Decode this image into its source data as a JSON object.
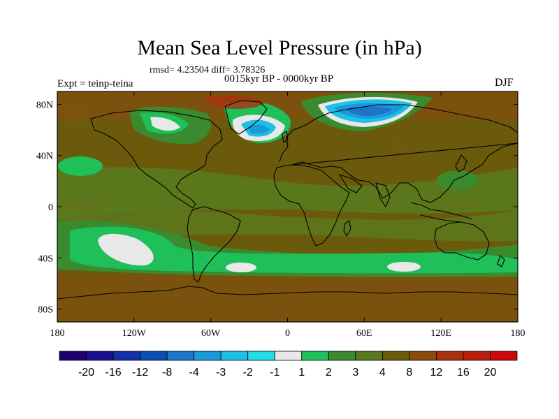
{
  "chart_data": {
    "type": "heatmap",
    "title": "Mean Sea Level Pressure (in hPa)",
    "stats_text": "rmsd= 4.23504 diff= 3.78326",
    "period": "0015kyr BP - 0000kyr BP",
    "experiment": "Expt = teinp-teina",
    "season": "DJF",
    "x_ticks": [
      "180",
      "120W",
      "60W",
      "0",
      "60E",
      "120E",
      "180"
    ],
    "y_ticks": [
      "80N",
      "40N",
      "0",
      "40S",
      "80S"
    ],
    "x_range": [
      -180,
      180
    ],
    "y_range": [
      -90,
      90
    ],
    "colorbar": {
      "labels": [
        "-20",
        "-16",
        "-12",
        "-8",
        "-4",
        "-3",
        "-2",
        "-1",
        "1",
        "2",
        "3",
        "4",
        "8",
        "12",
        "16",
        "20"
      ],
      "colors": [
        "#20006e",
        "#1a0f8e",
        "#1230a8",
        "#0a4fb5",
        "#1e74c8",
        "#1a9ad8",
        "#1ec0e6",
        "#22dce8",
        "#e8e8e8",
        "#1fbf5a",
        "#3a8a2e",
        "#5a7a1e",
        "#6b5a0c",
        "#8a4a10",
        "#a8320c",
        "#b81e0c",
        "#cc0a0a"
      ]
    }
  }
}
